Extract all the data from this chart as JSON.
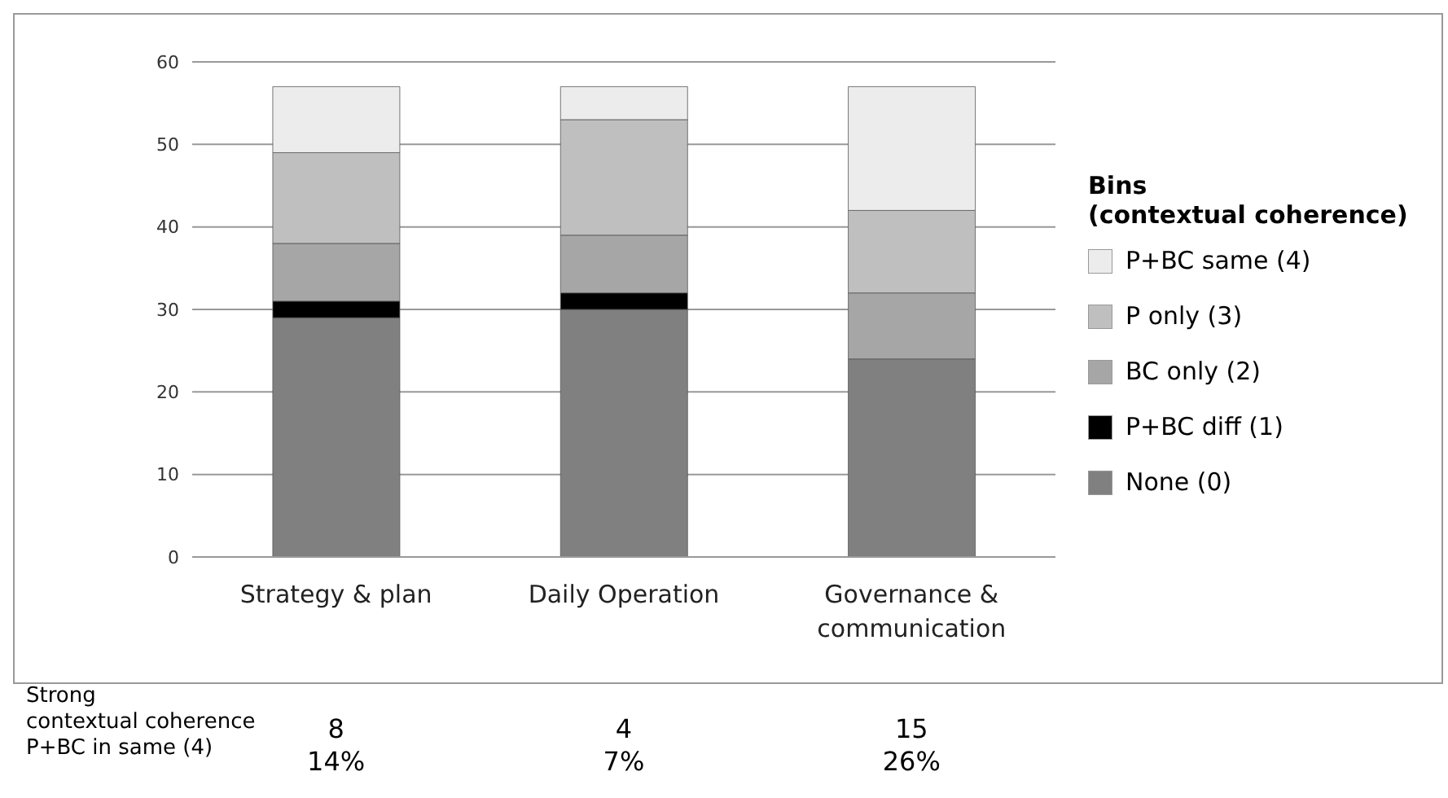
{
  "chart_data": {
    "type": "bar",
    "stacked": true,
    "categories": [
      "Strategy & plan",
      "Daily Operation",
      "Governance & communication"
    ],
    "series": [
      {
        "name": "None (0)",
        "color": "#808080",
        "values": [
          29,
          30,
          24
        ]
      },
      {
        "name": "P+BC diff (1)",
        "color": "#000000",
        "values": [
          2,
          2,
          0
        ]
      },
      {
        "name": "BC only (2)",
        "color": "#a6a6a6",
        "values": [
          7,
          7,
          8
        ]
      },
      {
        "name": "P only (3)",
        "color": "#bfbfbf",
        "values": [
          11,
          14,
          10
        ]
      },
      {
        "name": "P+BC same (4)",
        "color": "#ececec",
        "values": [
          8,
          4,
          15
        ]
      }
    ],
    "legend_title": "Bins\n(contextual coherence)",
    "legend": "right",
    "ylim": [
      0,
      60
    ],
    "yticks": [
      0,
      10,
      20,
      30,
      40,
      50,
      60
    ],
    "grid": "y",
    "annotations": [
      "Strong\ncontextual coherence\nP+BC in same (4)",
      "8",
      "14%",
      "4",
      "7%",
      "15",
      "26%"
    ]
  }
}
